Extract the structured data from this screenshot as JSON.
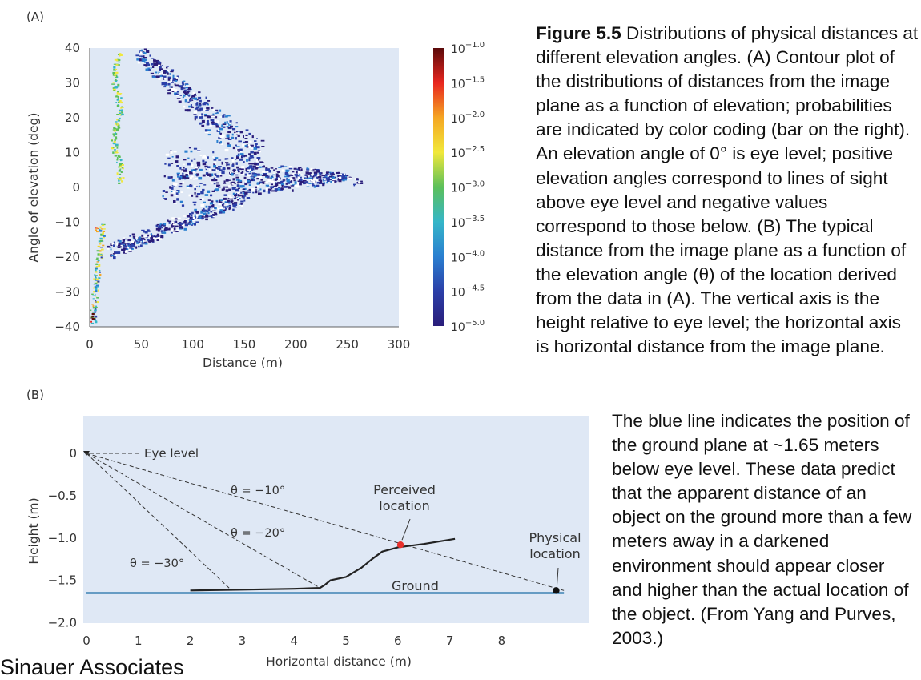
{
  "panel_a": {
    "label": "(A)",
    "chart_data": {
      "type": "heatmap",
      "xlabel": "Distance (m)",
      "ylabel": "Angle of elevation (deg)",
      "xlim": [
        0,
        300
      ],
      "ylim": [
        -40,
        40
      ],
      "x_ticks": [
        "0",
        "50",
        "100",
        "150",
        "200",
        "250",
        "300"
      ],
      "y_ticks": [
        "40",
        "30",
        "20",
        "10",
        "0",
        "−10",
        "−20",
        "−30",
        "−40"
      ],
      "colorbar": {
        "ticks": [
          {
            "base": "10",
            "exp": "−1.0"
          },
          {
            "base": "10",
            "exp": "−1.5"
          },
          {
            "base": "10",
            "exp": "−2.0"
          },
          {
            "base": "10",
            "exp": "−2.5"
          },
          {
            "base": "10",
            "exp": "−3.0"
          },
          {
            "base": "10",
            "exp": "−3.5"
          },
          {
            "base": "10",
            "exp": "−4.0"
          },
          {
            "base": "10",
            "exp": "−4.5"
          },
          {
            "base": "10",
            "exp": "−5.0"
          }
        ],
        "scale": "log",
        "range": [
          -5.0,
          -1.0
        ],
        "colors": [
          "#2a1d7a",
          "#2b3fa8",
          "#2a7fd0",
          "#35b6c8",
          "#5cc05a",
          "#f1e83a",
          "#f5a623",
          "#e8261f",
          "#5a0a0a"
        ]
      },
      "background": "#dfe8f5"
    }
  },
  "panel_b": {
    "label": "(B)",
    "chart_data": {
      "type": "line",
      "xlabel": "Horizontal distance (m)",
      "ylabel": "Height (m)",
      "xlim": [
        0,
        9
      ],
      "ylim": [
        -2.0,
        0
      ],
      "x_ticks": [
        "0",
        "1",
        "2",
        "3",
        "4",
        "5",
        "6",
        "7",
        "8"
      ],
      "y_ticks": [
        "0",
        "−0.5",
        "−1.0",
        "−1.5",
        "−2.0"
      ],
      "series": [
        {
          "role": "perceived-ground",
          "x": [
            2.0,
            3.0,
            4.0,
            4.5,
            4.6,
            4.7,
            5.0,
            5.3,
            5.5,
            5.7,
            6.0,
            6.5,
            7.1
          ],
          "y": [
            -1.62,
            -1.61,
            -1.6,
            -1.59,
            -1.55,
            -1.5,
            -1.46,
            -1.35,
            -1.25,
            -1.16,
            -1.11,
            -1.07,
            -1.01
          ]
        },
        {
          "role": "ground",
          "x": [
            0,
            9.2
          ],
          "y": [
            -1.65,
            -1.65
          ],
          "color": "#1f6fa8"
        }
      ],
      "sight_lines": [
        {
          "label": "θ = −10°",
          "to": [
            9.2,
            -1.62
          ]
        },
        {
          "label": "θ = −20°",
          "to": [
            4.5,
            -1.59
          ]
        },
        {
          "label": "θ = −30°",
          "to": [
            2.8,
            -1.62
          ]
        }
      ],
      "eye_level_label": "Eye level",
      "ground_label": "Ground",
      "perceived_label": [
        "Perceived",
        "location"
      ],
      "physical_label": [
        "Physical",
        "location"
      ],
      "perceived_point": {
        "x": 6.05,
        "y": -1.08,
        "color": "#e8302c"
      },
      "physical_point": {
        "x": 9.05,
        "y": -1.62,
        "color": "#111111"
      },
      "background": "#dfe8f5"
    }
  },
  "caption": {
    "figure_label": "Figure 5.5",
    "text_1": "Distributions of physical distances at different elevation angles. (A) Contour plot of the distributions of distances from the image plane as a function of elevation; probabilities are indicated by color coding (bar on the right). An elevation angle of 0° is eye level; positive elevation angles correspond to lines of sight above eye level and negative values correspond to those below. (B) The typical distance from the image plane as a function of the elevation angle (θ) of the location derived from the data in (A). The vertical axis is the height relative to eye level; the horizontal axis is horizontal distance from the image plane.",
    "text_2": "The blue line indicates the position of the ground plane at ~1.65 meters below eye level. These data predict that the apparent distance of an object on the ground more than a few meters away in a darkened environment should appear closer and higher than the actual location of the object. (From Yang and Purves, 2003.)"
  },
  "cut_text": "Sinauer Associates"
}
